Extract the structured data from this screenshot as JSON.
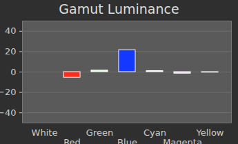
{
  "chart_data": {
    "type": "bar",
    "title": "Gamut Luminance",
    "categories": [
      "White",
      "Red",
      "Green",
      "Blue",
      "Cyan",
      "Magenta",
      "Yellow"
    ],
    "values": [
      0,
      -5.5,
      1.5,
      21.5,
      1,
      -1.5,
      -0.5
    ],
    "colors": [
      "#dddddd",
      "#ff2a1a",
      "#ccffcc",
      "#1438ff",
      "#ccffff",
      "#ffccff",
      "#111111"
    ],
    "ylim": [
      -50,
      50
    ],
    "yticks": [
      -40,
      -20,
      0,
      20,
      40
    ],
    "grid": true
  }
}
